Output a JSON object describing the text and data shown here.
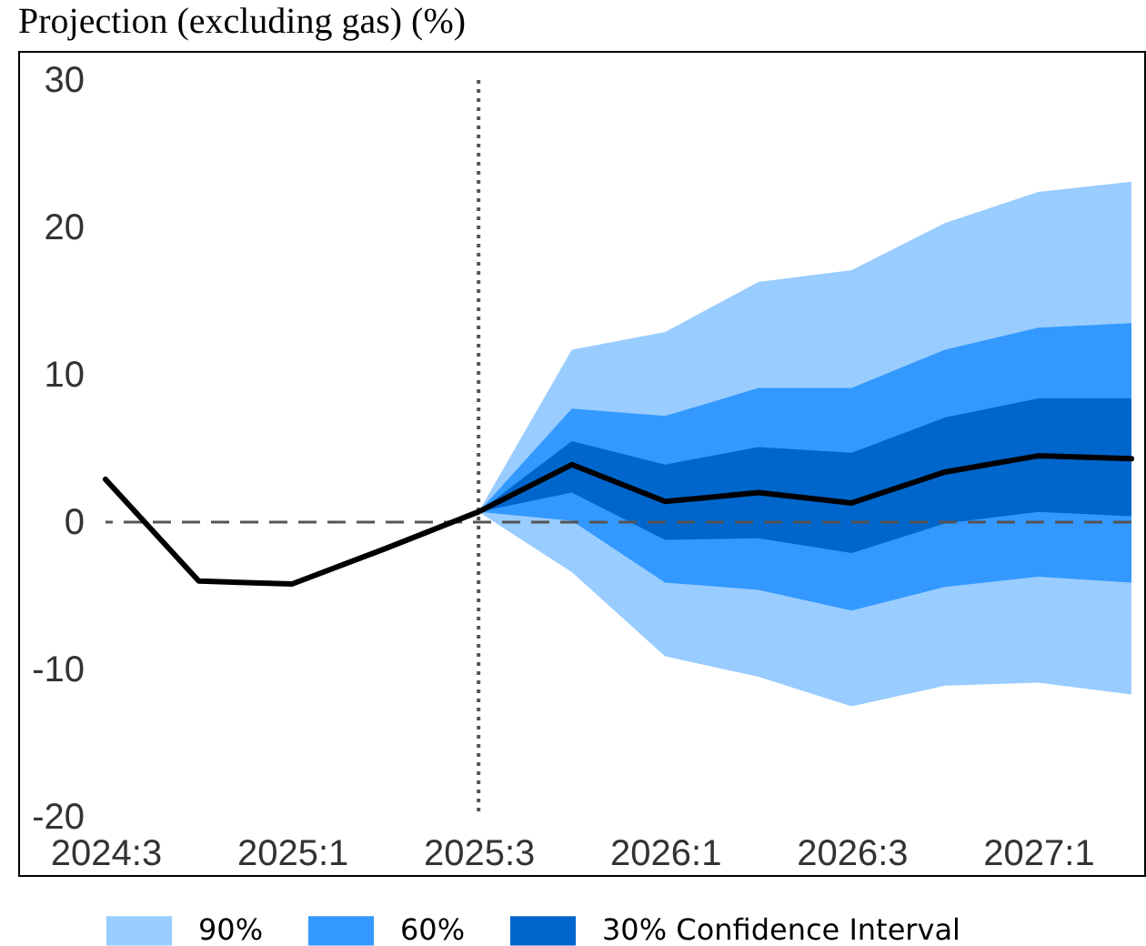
{
  "chart_data": {
    "type": "line",
    "title": "Projection (excluding gas) (%)",
    "categories": [
      "2024:3",
      null,
      "2025:1",
      null,
      "2025:3",
      null,
      "2026:1",
      null,
      "2026:3",
      null,
      "2027:1",
      null
    ],
    "ylim": [
      -20,
      30
    ],
    "yticks": [
      -20,
      -10,
      0,
      10,
      20,
      30
    ],
    "series": [
      {
        "name": "90%",
        "color": "#99ccff",
        "values": [
          null,
          null,
          null,
          null,
          null,
          null,
          null,
          null,
          null,
          null,
          null,
          null
        ],
        "lower": [
          null,
          null,
          null,
          null,
          0.7,
          -3.4,
          -9.1,
          -10.5,
          -12.5,
          -11.1,
          -10.9,
          -11.7
        ],
        "upper": [
          null,
          null,
          null,
          null,
          0.7,
          11.7,
          12.9,
          16.3,
          17.1,
          20.3,
          22.4,
          23.1
        ]
      },
      {
        "name": "60%",
        "color": "#3399ff",
        "values": [
          null,
          null,
          null,
          null,
          null,
          null,
          null,
          null,
          null,
          null,
          null,
          null
        ],
        "lower": [
          null,
          null,
          null,
          null,
          0.7,
          0.1,
          -4.1,
          -4.6,
          -6.0,
          -4.4,
          -3.7,
          -4.1
        ],
        "upper": [
          null,
          null,
          null,
          null,
          0.7,
          7.7,
          7.2,
          9.1,
          9.1,
          11.7,
          13.2,
          13.5
        ]
      },
      {
        "name": "30% Confidence Interval",
        "color": "#0066cc",
        "values": [
          null,
          null,
          null,
          null,
          null,
          null,
          null,
          null,
          null,
          null,
          null,
          null
        ],
        "lower": [
          null,
          null,
          null,
          null,
          0.7,
          2.0,
          -1.2,
          -1.1,
          -2.1,
          -0.1,
          0.7,
          0.4
        ],
        "upper": [
          null,
          null,
          null,
          null,
          0.7,
          5.5,
          3.9,
          5.1,
          4.7,
          7.1,
          8.4,
          8.4
        ]
      },
      {
        "color": "#000000",
        "values": [
          2.9,
          -4.0,
          -4.2,
          -1.8,
          0.7,
          3.9,
          1.4,
          2.0,
          1.3,
          3.4,
          4.5,
          4.3
        ]
      }
    ],
    "ref_lines": [
      {
        "axis": "y",
        "value": 0,
        "color": "#555555",
        "line_style": "dashed"
      },
      {
        "axis": "x",
        "value": "2025:3",
        "color": "#555555",
        "line_style": "dotted"
      }
    ],
    "grid": false,
    "legend": "bottom",
    "marker": "none"
  }
}
